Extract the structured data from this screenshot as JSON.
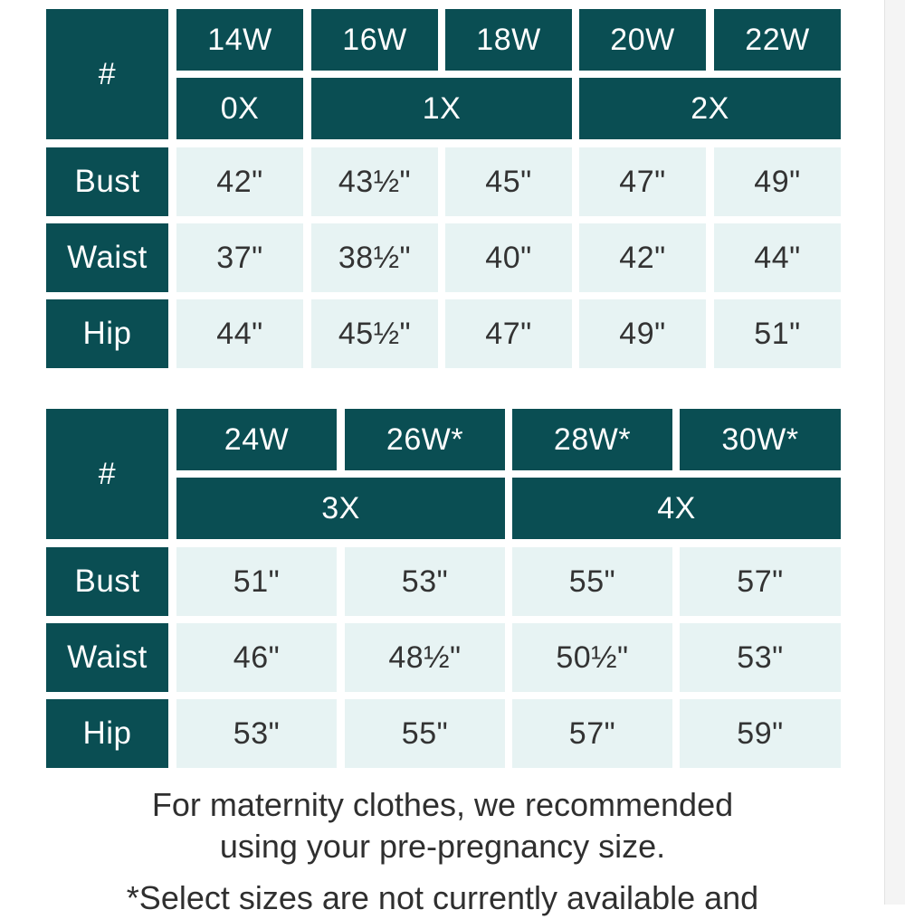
{
  "colors": {
    "header_bg": "#0a4e53",
    "header_text": "#ffffff",
    "value_bg": "#e7f3f3",
    "value_text": "#333333"
  },
  "table1": {
    "corner": "#",
    "sizes": [
      "14W",
      "16W",
      "18W",
      "20W",
      "22W"
    ],
    "groups": [
      "0X",
      "1X",
      "2X"
    ],
    "rows": [
      {
        "label": "Bust",
        "values": [
          "42\"",
          "43½\"",
          "45\"",
          "47\"",
          "49\""
        ]
      },
      {
        "label": "Waist",
        "values": [
          "37\"",
          "38½\"",
          "40\"",
          "42\"",
          "44\""
        ]
      },
      {
        "label": "Hip",
        "values": [
          "44\"",
          "45½\"",
          "47\"",
          "49\"",
          "51\""
        ]
      }
    ]
  },
  "table2": {
    "corner": "#",
    "sizes": [
      "24W",
      "26W*",
      "28W*",
      "30W*"
    ],
    "groups": [
      "3X",
      "4X"
    ],
    "rows": [
      {
        "label": "Bust",
        "values": [
          "51\"",
          "53\"",
          "55\"",
          "57\""
        ]
      },
      {
        "label": "Waist",
        "values": [
          "46\"",
          "48½\"",
          "50½\"",
          "53\""
        ]
      },
      {
        "label": "Hip",
        "values": [
          "53\"",
          "55\"",
          "57\"",
          "59\""
        ]
      }
    ]
  },
  "notes": {
    "maternity_line1": "For maternity clothes, we recommended",
    "maternity_line2": "using your pre-pregnancy size.",
    "select_sizes": "*Select sizes are not currently available and"
  }
}
